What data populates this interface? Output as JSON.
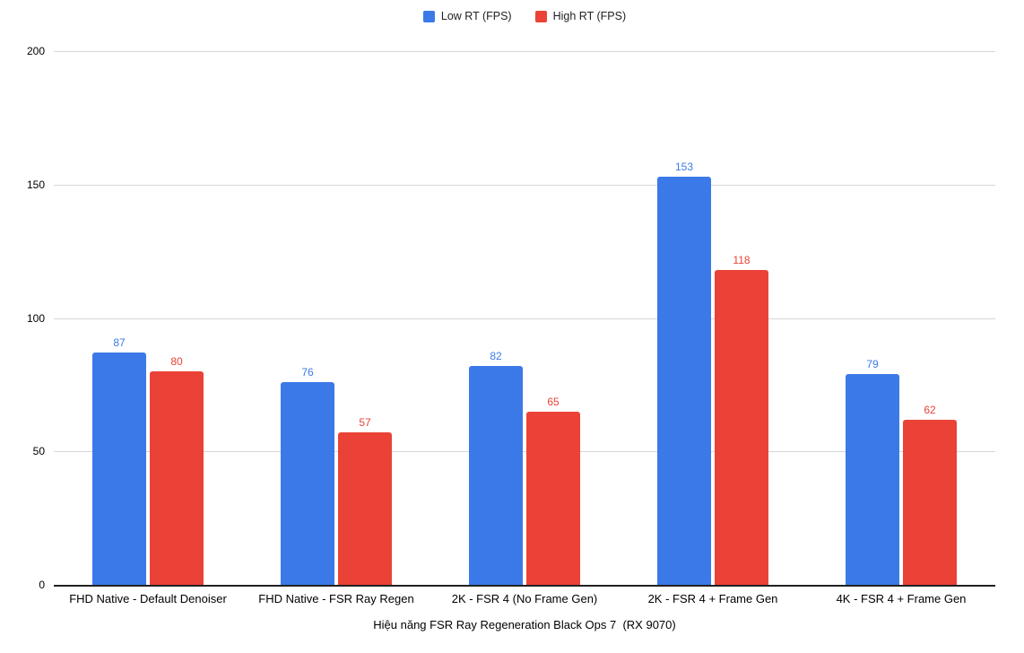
{
  "chart_data": {
    "type": "bar",
    "title": "Hiệu năng FSR Ray Regeneration Black Ops 7  (RX 9070)",
    "categories": [
      "FHD Native - Default Denoiser",
      "FHD Native - FSR Ray Regen",
      "2K - FSR 4 (No Frame Gen)",
      "2K - FSR 4 + Frame Gen",
      "4K - FSR 4 + Frame Gen"
    ],
    "series": [
      {
        "name": "Low RT (FPS)",
        "color": "#3C79E8",
        "values": [
          87,
          76,
          82,
          153,
          79
        ]
      },
      {
        "name": "High RT (FPS)",
        "color": "#EA4236",
        "values": [
          80,
          57,
          65,
          118,
          62
        ]
      }
    ],
    "ylim": [
      0,
      200
    ],
    "yticks": [
      0,
      50,
      100,
      150,
      200
    ],
    "grid": true,
    "legend_position": "top",
    "show_value_labels": true,
    "colors": {
      "gridline": "#d6d6d6",
      "axis_line": "#212121",
      "tick_text": "#000000",
      "legend_text": "#202124",
      "background": "#ffffff"
    }
  }
}
